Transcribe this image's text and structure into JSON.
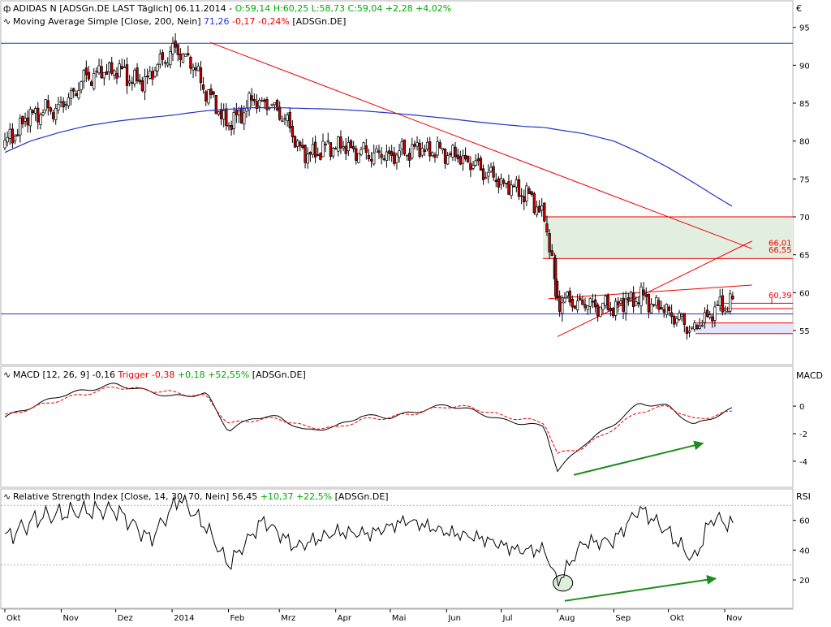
{
  "currency_symbol": "€",
  "panels": {
    "price": {
      "legend_main": {
        "prefix": "ADIDAS N [ADSGn.DE LAST Täglich] 06.11.2014 - ",
        "values": "O:59,14 H:60,25 L:58,73 C:59,04 +2,28 +4,02%"
      },
      "legend_ma": {
        "prefix": "Moving Average Simple [Close, 200, Nein] ",
        "value": "71,26",
        "change": "-0,17 -0,24%",
        "suffix": " [ADSGn.DE]"
      },
      "y_ticks": [
        "95",
        "90",
        "85",
        "80",
        "75",
        "70",
        "65",
        "60",
        "55"
      ],
      "annotations": [
        "66,01",
        "66,55",
        "60,39"
      ]
    },
    "macd": {
      "legend_prefix": "MACD [12, 26, 9] -0,16 ",
      "legend_trigger": "Trigger -0,38",
      "legend_change": " +0,18 +52,55%",
      "legend_suffix": " [ADSGn.DE]",
      "axis_title": "MACD",
      "y_ticks": [
        "0",
        "-2",
        "-4"
      ]
    },
    "rsi": {
      "legend_prefix": "Relative Strength Index [Close, 14, 30, 70, Nein] 56,45 ",
      "legend_change": "+10,37 +22,5%",
      "legend_suffix": " [ADSGn.DE]",
      "axis_title": "RSI",
      "y_ticks": [
        "60",
        "40",
        "20"
      ]
    }
  },
  "x_axis": {
    "labels": [
      "Okt",
      "Nov",
      "Dez",
      "2014",
      "Feb",
      "Mrz",
      "Apr",
      "Mai",
      "Jun",
      "Jul",
      "Aug",
      "Sep",
      "Okt",
      "Nov"
    ]
  },
  "colors": {
    "up": "#ffffff",
    "down": "#cc0000",
    "wick": "#000000",
    "ma": "#2233cc",
    "trend": "#ee0000",
    "zone_green": "#e2efe0",
    "zone_purple": "#e6e6fa",
    "horizontal": "#2233cc",
    "arrow": "#1e8c1e",
    "macd": "#000000",
    "trigger": "#ee0000",
    "rsi": "#000000",
    "legend_pos": "#00aa00",
    "legend_neg": "#ee0000",
    "legend_blue": "#2233cc"
  },
  "chart_data": [
    {
      "type": "candlestick",
      "title": "ADIDAS N [ADSGn.DE LAST Täglich]",
      "x": [
        "2013-10-01",
        "2013-10-15",
        "2013-11-01",
        "2013-11-15",
        "2013-12-01",
        "2013-12-15",
        "2014-01-01",
        "2014-01-10",
        "2014-01-20",
        "2014-02-01",
        "2014-02-15",
        "2014-03-01",
        "2014-03-15",
        "2014-04-01",
        "2014-04-15",
        "2014-05-01",
        "2014-05-15",
        "2014-06-01",
        "2014-06-15",
        "2014-07-01",
        "2014-07-15",
        "2014-07-25",
        "2014-08-01",
        "2014-08-15",
        "2014-09-01",
        "2014-09-15",
        "2014-10-01",
        "2014-10-15",
        "2014-10-25",
        "2014-11-06"
      ],
      "close": [
        79.5,
        83.5,
        84.5,
        88.5,
        89.5,
        87.5,
        92.0,
        91.0,
        86.5,
        82.0,
        85.5,
        84.0,
        78.0,
        79.5,
        78.5,
        78.0,
        79.0,
        78.5,
        77.0,
        74.5,
        73.0,
        70.0,
        59.0,
        58.5,
        58.0,
        59.5,
        57.5,
        55.0,
        57.5,
        59.04
      ],
      "series": [
        {
          "name": "Moving Average Simple [Close, 200, Nein]",
          "values": [
            78.5,
            80.0,
            81.2,
            82.0,
            82.6,
            83.0,
            83.4,
            83.7,
            84.0,
            84.2,
            84.4,
            84.4,
            84.3,
            84.2,
            84.0,
            83.7,
            83.4,
            83.0,
            82.6,
            82.2,
            81.9,
            81.8,
            81.5,
            81.0,
            80.0,
            78.5,
            76.5,
            74.5,
            73.0,
            71.26
          ]
        }
      ],
      "ylim": [
        50.5,
        98.5
      ],
      "y_ticks": [
        55,
        60,
        65,
        70,
        75,
        80,
        85,
        90,
        95
      ],
      "horizontal_lines": [
        92.9,
        57.2,
        70.0,
        64.5,
        56.0,
        54.6
      ],
      "annotations": [
        "66,01",
        "66,55",
        "60,39"
      ]
    },
    {
      "type": "line",
      "title": "MACD [12, 26, 9]",
      "x": [
        "2013-10-01",
        "2013-11-01",
        "2013-12-01",
        "2014-01-01",
        "2014-01-20",
        "2014-02-01",
        "2014-02-15",
        "2014-03-01",
        "2014-03-15",
        "2014-04-01",
        "2014-04-15",
        "2014-05-01",
        "2014-05-15",
        "2014-06-01",
        "2014-06-15",
        "2014-07-01",
        "2014-07-25",
        "2014-08-01",
        "2014-08-15",
        "2014-09-01",
        "2014-09-15",
        "2014-10-01",
        "2014-10-15",
        "2014-11-06"
      ],
      "series": [
        {
          "name": "MACD",
          "values": [
            -0.8,
            0.8,
            1.6,
            0.7,
            0.9,
            -1.8,
            -0.8,
            -0.8,
            -1.8,
            -1.5,
            -0.7,
            -0.8,
            -0.4,
            0.1,
            -0.3,
            -1.0,
            -1.5,
            -4.7,
            -2.8,
            -1.3,
            0.2,
            0.0,
            -1.4,
            -0.16
          ]
        },
        {
          "name": "Trigger",
          "values": [
            -0.7,
            0.5,
            1.4,
            1.0,
            0.7,
            -1.3,
            -1.0,
            -0.9,
            -1.5,
            -1.6,
            -1.0,
            -0.8,
            -0.5,
            0.0,
            -0.1,
            -0.7,
            -1.2,
            -3.5,
            -3.0,
            -1.6,
            -0.4,
            0.0,
            -1.0,
            -0.38
          ]
        }
      ],
      "ylim": [
        -5.9,
        2.9
      ],
      "y_ticks": [
        0,
        -2,
        -4
      ]
    },
    {
      "type": "line",
      "title": "Relative Strength Index [Close, 14, 30, 70, Nein]",
      "x": [
        "2013-10-01",
        "2013-10-20",
        "2013-11-10",
        "2013-12-01",
        "2013-12-20",
        "2014-01-05",
        "2014-01-20",
        "2014-02-01",
        "2014-02-20",
        "2014-03-10",
        "2014-04-01",
        "2014-04-20",
        "2014-05-10",
        "2014-06-01",
        "2014-06-20",
        "2014-07-10",
        "2014-07-25",
        "2014-08-01",
        "2014-08-15",
        "2014-09-01",
        "2014-09-15",
        "2014-10-01",
        "2014-10-15",
        "2014-10-25",
        "2014-11-06"
      ],
      "series": [
        {
          "name": "RSI",
          "values": [
            48,
            62,
            66,
            67,
            47,
            75,
            55,
            30,
            60,
            42,
            52,
            51,
            60,
            52,
            48,
            40,
            40,
            18,
            45,
            46,
            68,
            52,
            33,
            62,
            56.45
          ]
        }
      ],
      "ylim": [
        1,
        81
      ],
      "y_ticks": [
        20,
        40,
        60
      ],
      "bands": [
        30,
        70
      ]
    }
  ]
}
